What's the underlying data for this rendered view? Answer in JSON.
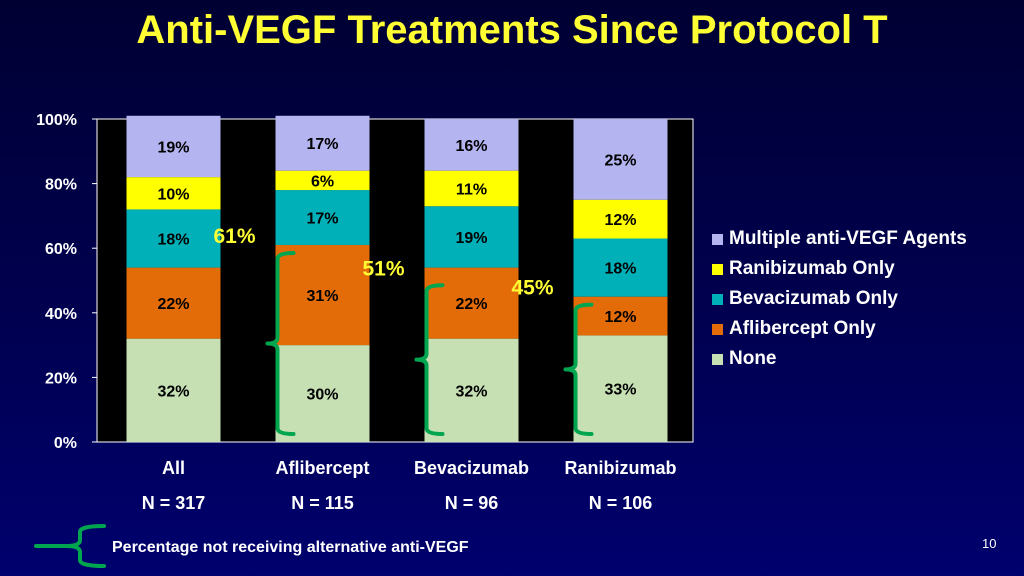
{
  "slide": {
    "title": "Anti-VEGF Treatments Since Protocol T",
    "footnote": "Percentage not receiving alternative anti-VEGF",
    "page_number": "10"
  },
  "chart_data": {
    "type": "bar",
    "stacked": true,
    "title": "",
    "xlabel": "",
    "ylabel": "",
    "ylim": [
      0,
      100
    ],
    "y_ticks": [
      "0%",
      "20%",
      "40%",
      "60%",
      "80%",
      "100%"
    ],
    "categories": [
      "All",
      "Aflibercept",
      "Bevacizumab",
      "Ranibizumab"
    ],
    "n_labels": [
      "N = 317",
      "N = 115",
      "N = 96",
      "N = 106"
    ],
    "series": [
      {
        "name": "None",
        "color": "#c6e0b4",
        "values": [
          32,
          30,
          32,
          33
        ],
        "labels": [
          "32%",
          "30%",
          "32%",
          "33%"
        ]
      },
      {
        "name": "Aflibercept Only",
        "color": "#e36c09",
        "values": [
          22,
          31,
          22,
          12
        ],
        "labels": [
          "22%",
          "31%",
          "22%",
          "12%"
        ]
      },
      {
        "name": "Bevacizumab Only",
        "color": "#00b0b9",
        "values": [
          18,
          17,
          19,
          18
        ],
        "labels": [
          "18%",
          "17%",
          "19%",
          "18%"
        ]
      },
      {
        "name": "Ranibizumab Only",
        "color": "#ffff00",
        "values": [
          10,
          6,
          11,
          12
        ],
        "labels": [
          "10%",
          "6%",
          "11%",
          "12%"
        ]
      },
      {
        "name": "Multiple anti-VEGF Agents",
        "color": "#b4b4f0",
        "values": [
          19,
          17,
          16,
          25
        ],
        "labels": [
          "19%",
          "17%",
          "16%",
          "25%"
        ]
      }
    ],
    "legend_order": [
      "Multiple anti-VEGF Agents",
      "Ranibizumab Only",
      "Bevacizumab Only",
      "Aflibercept Only",
      "None"
    ],
    "legend_position": "right",
    "plot_background": "#000000",
    "annotations": [
      {
        "category": "Aflibercept",
        "text": "61%",
        "span_series": [
          "None",
          "Aflibercept Only"
        ]
      },
      {
        "category": "Bevacizumab",
        "text": "51%",
        "span_series": [
          "None",
          "Bevacizumab Only"
        ]
      },
      {
        "category": "Ranibizumab",
        "text": "45%",
        "span_series": [
          "None",
          "Ranibizumab Only"
        ]
      }
    ],
    "annotation_color": "#ffff33",
    "bracket_color": "#00a550"
  }
}
